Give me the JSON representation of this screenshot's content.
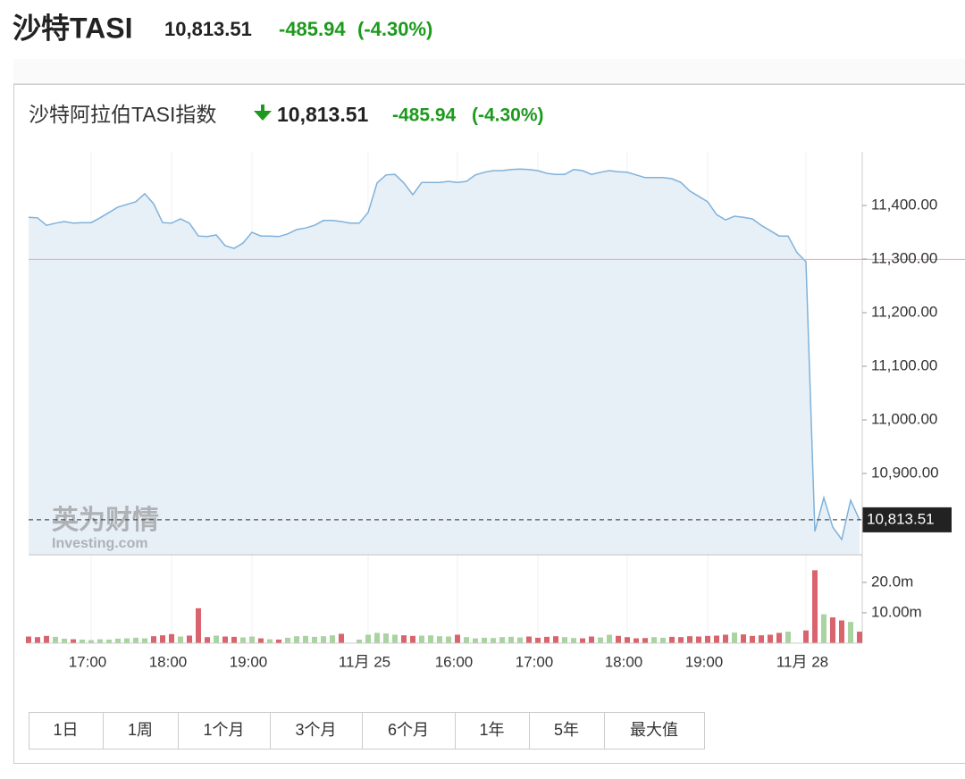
{
  "header": {
    "name": "沙特TASI",
    "price": "10,813.51",
    "change": "-485.94",
    "change_pct": "(-4.30%)"
  },
  "chart_data": [
    {
      "type": "area",
      "title": "沙特阿拉伯TASI指数",
      "price": "10,813.51",
      "change": "-485.94",
      "change_pct": "(-4.30%)",
      "categories": [
        null,
        null,
        null,
        null,
        null,
        null,
        null,
        "17:00",
        null,
        null,
        null,
        null,
        null,
        null,
        null,
        null,
        "18:00",
        null,
        null,
        null,
        null,
        null,
        null,
        null,
        null,
        "19:00",
        null,
        null,
        null,
        null,
        null,
        null,
        null,
        null,
        null,
        null,
        null,
        null,
        "11月 25",
        null,
        null,
        null,
        null,
        null,
        null,
        null,
        null,
        null,
        "16:00",
        null,
        null,
        null,
        null,
        null,
        null,
        null,
        null,
        "17:00",
        null,
        null,
        null,
        null,
        null,
        null,
        null,
        null,
        null,
        "18:00",
        null,
        null,
        null,
        null,
        null,
        null,
        null,
        null,
        "19:00",
        null,
        null,
        null,
        null,
        null,
        null,
        null,
        null,
        null,
        null,
        "11月 28",
        null,
        null,
        null,
        null,
        null,
        null
      ],
      "values": [
        11378,
        11377,
        11363,
        11367,
        11370,
        11367,
        11368,
        11368,
        11377,
        11387,
        11397,
        11402,
        11407,
        11422,
        11403,
        11368,
        11367,
        11375,
        11367,
        11343,
        11342,
        11345,
        11325,
        11320,
        11330,
        11350,
        11343,
        11343,
        11342,
        11347,
        11355,
        11358,
        11363,
        11372,
        11372,
        11370,
        11367,
        11367,
        11387,
        11442,
        11457,
        11458,
        11442,
        11420,
        11443,
        11443,
        11443,
        11445,
        11443,
        11445,
        11457,
        11462,
        11465,
        11465,
        11467,
        11468,
        11467,
        11465,
        11460,
        11458,
        11458,
        11467,
        11465,
        11458,
        11462,
        11465,
        11463,
        11462,
        11457,
        11452,
        11452,
        11452,
        11450,
        11443,
        11427,
        11417,
        11407,
        11383,
        11373,
        11380,
        11378,
        11375,
        11363,
        11353,
        11343,
        11343,
        11312,
        11295,
        10792,
        10855,
        10800,
        10777,
        10850,
        10813.51
      ],
      "last_label": "10,813.51",
      "prev_close": 11299.45,
      "color": "#7fb2db",
      "fill": "#e7eff7",
      "ref_color": "#f2a5a5",
      "ylim": [
        10750,
        11500
      ],
      "yticks": [
        {
          "value": 10900,
          "label": "10,900.00"
        },
        {
          "value": 11000,
          "label": "11,000.00"
        },
        {
          "value": 11100,
          "label": "11,100.00"
        },
        {
          "value": 11200,
          "label": "11,200.00"
        },
        {
          "value": 11300,
          "label": "11,300.00"
        },
        {
          "value": 11400,
          "label": "11,400.00"
        }
      ],
      "watermark": [
        "英为财情",
        "Investing.com"
      ]
    },
    {
      "type": "bar",
      "values": [
        2.2,
        2.0,
        2.4,
        2.1,
        1.5,
        1.3,
        1.2,
        1.0,
        1.3,
        1.2,
        1.5,
        1.6,
        1.8,
        1.6,
        2.3,
        2.6,
        3.0,
        2.2,
        2.5,
        11.5,
        2.0,
        2.5,
        2.2,
        2.1,
        1.9,
        2.2,
        1.6,
        1.3,
        1.2,
        1.8,
        2.3,
        2.4,
        2.1,
        2.3,
        2.6,
        3.1,
        0,
        1.2,
        2.8,
        3.4,
        3.2,
        2.8,
        2.6,
        2.4,
        2.5,
        2.6,
        2.3,
        2.2,
        2.8,
        2.0,
        1.6,
        1.8,
        1.7,
        2.0,
        2.1,
        1.9,
        2.2,
        1.8,
        2.1,
        2.3,
        2.0,
        1.7,
        1.6,
        2.2,
        1.9,
        2.8,
        2.4,
        2.0,
        1.6,
        1.7,
        2.0,
        1.8,
        2.1,
        2.0,
        2.3,
        2.2,
        2.4,
        2.5,
        2.8,
        3.5,
        2.9,
        2.4,
        2.6,
        2.8,
        3.4,
        3.8,
        0,
        4.2,
        24.0,
        9.5,
        8.5,
        7.5,
        7.0,
        3.8
      ],
      "up_color": "#a9d3a1",
      "down_color": "#d9646e",
      "ylim": [
        0,
        28.5
      ],
      "yticks": [
        {
          "value": 10,
          "label": "10.00m"
        },
        {
          "value": 20,
          "label": "20.0m"
        }
      ]
    }
  ],
  "range_buttons": [
    "1日",
    "1周",
    "1个月",
    "3个月",
    "6个月",
    "1年",
    "5年",
    "最大值"
  ]
}
